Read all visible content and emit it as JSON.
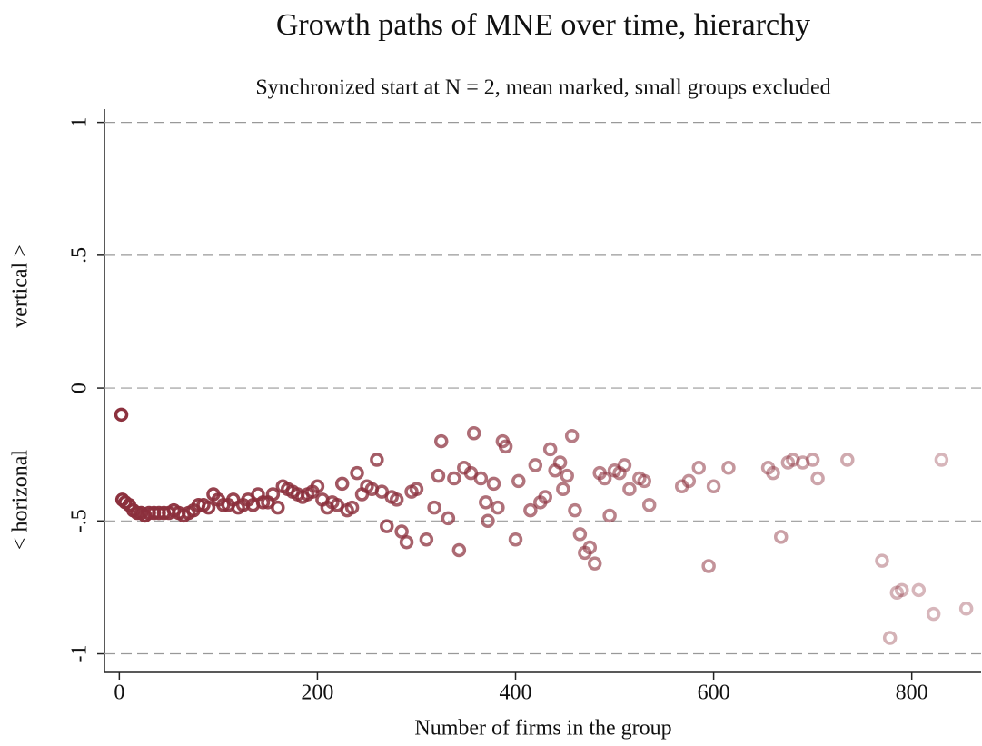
{
  "chart_data": {
    "type": "scatter",
    "title": "Growth paths of MNE over time, hierarchy",
    "subtitle": "Synchronized start at N = 2, mean marked, small groups excluded",
    "xlabel": "Number of firms in the group",
    "ylabel_upper": "vertical >",
    "ylabel_lower": "< horizonal",
    "xlim": [
      -15,
      870
    ],
    "ylim": [
      -1.07,
      1.05
    ],
    "xticks": [
      0,
      200,
      400,
      600,
      800
    ],
    "yticks": [
      1,
      {
        "value": 0.5,
        "label": ".5"
      },
      0,
      {
        "value": -0.5,
        "label": "-.5"
      },
      -1
    ],
    "grid": true,
    "series": [
      {
        "name": "mean",
        "color": "#8b2f3c",
        "x": [
          2,
          3,
          6,
          10,
          14,
          18,
          22,
          26,
          30,
          35,
          40,
          45,
          50,
          55,
          60,
          65,
          70,
          75,
          80,
          85,
          90,
          95,
          100,
          105,
          110,
          115,
          120,
          125,
          130,
          135,
          140,
          145,
          150,
          155,
          160,
          165,
          170,
          175,
          180,
          185,
          190,
          195,
          200,
          205,
          210,
          215,
          220,
          225,
          230,
          235,
          240,
          245,
          250,
          255,
          260,
          265,
          270,
          275,
          280,
          285,
          290,
          295,
          300,
          310,
          318,
          322,
          325,
          332,
          338,
          343,
          348,
          355,
          358,
          365,
          370,
          372,
          378,
          382,
          387,
          390,
          400,
          403,
          415,
          420,
          425,
          430,
          435,
          440,
          445,
          448,
          452,
          457,
          460,
          465,
          470,
          475,
          480,
          485,
          490,
          495,
          500,
          505,
          510,
          515,
          525,
          530,
          535,
          568,
          575,
          585,
          595,
          600,
          615,
          655,
          660,
          668,
          675,
          680,
          690,
          700,
          705,
          735,
          770,
          778,
          785,
          790,
          807,
          822,
          830,
          855
        ],
        "values": [
          -0.1,
          -0.42,
          -0.43,
          -0.44,
          -0.46,
          -0.47,
          -0.47,
          -0.48,
          -0.47,
          -0.47,
          -0.47,
          -0.47,
          -0.47,
          -0.46,
          -0.47,
          -0.48,
          -0.47,
          -0.46,
          -0.44,
          -0.44,
          -0.45,
          -0.4,
          -0.42,
          -0.44,
          -0.44,
          -0.42,
          -0.45,
          -0.44,
          -0.42,
          -0.44,
          -0.4,
          -0.43,
          -0.43,
          -0.4,
          -0.45,
          -0.37,
          -0.38,
          -0.39,
          -0.4,
          -0.41,
          -0.4,
          -0.39,
          -0.37,
          -0.42,
          -0.45,
          -0.43,
          -0.44,
          -0.36,
          -0.46,
          -0.45,
          -0.32,
          -0.4,
          -0.37,
          -0.38,
          -0.27,
          -0.39,
          -0.52,
          -0.41,
          -0.42,
          -0.54,
          -0.58,
          -0.39,
          -0.38,
          -0.57,
          -0.45,
          -0.33,
          -0.2,
          -0.49,
          -0.34,
          -0.61,
          -0.3,
          -0.32,
          -0.17,
          -0.34,
          -0.43,
          -0.5,
          -0.36,
          -0.45,
          -0.2,
          -0.22,
          -0.57,
          -0.35,
          -0.46,
          -0.29,
          -0.43,
          -0.41,
          -0.23,
          -0.31,
          -0.28,
          -0.38,
          -0.33,
          -0.18,
          -0.46,
          -0.55,
          -0.62,
          -0.6,
          -0.66,
          -0.32,
          -0.34,
          -0.48,
          -0.31,
          -0.32,
          -0.29,
          -0.38,
          -0.34,
          -0.35,
          -0.44,
          -0.37,
          -0.35,
          -0.3,
          -0.67,
          -0.37,
          -0.3,
          -0.3,
          -0.32,
          -0.56,
          -0.28,
          -0.27,
          -0.28,
          -0.27,
          -0.34,
          -0.27,
          -0.65,
          -0.94,
          -0.77,
          -0.76,
          -0.76,
          -0.85,
          -0.27,
          -0.83
        ]
      }
    ]
  }
}
